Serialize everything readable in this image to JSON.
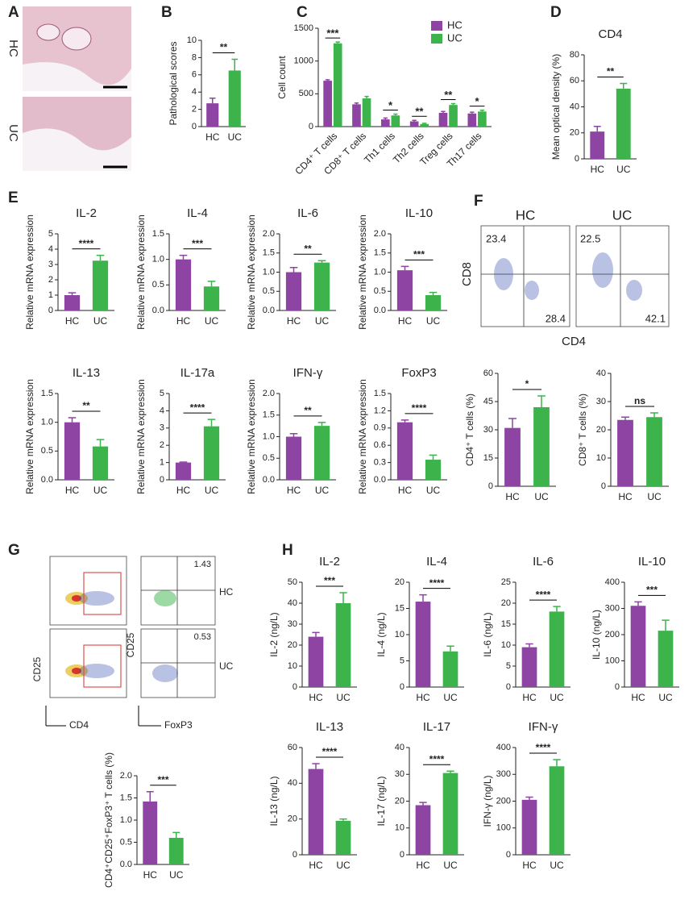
{
  "chart_data": [
    {
      "type": "bar",
      "panel": "B",
      "ylabel": "Pathological scores",
      "categories": [
        "HC",
        "UC"
      ],
      "values": [
        2.7,
        6.5
      ],
      "errors": [
        0.6,
        1.3
      ],
      "colors": [
        "#8e44a3",
        "#3cb44b"
      ],
      "ylim": [
        0,
        10
      ],
      "yticks": [
        0,
        2,
        4,
        6,
        8,
        10
      ],
      "annotation": "**"
    },
    {
      "type": "bar",
      "panel": "C",
      "ylabel": "Cell count",
      "categories": [
        "CD4⁺ T cells",
        "CD8⁺ T cells",
        "Th1 cells",
        "Th2 cells",
        "Treg cells",
        "Th17 cells"
      ],
      "series": [
        {
          "name": "HC",
          "color": "#8e44a3",
          "values": [
            700,
            340,
            110,
            80,
            210,
            200
          ],
          "errors": [
            15,
            20,
            20,
            15,
            20,
            20
          ]
        },
        {
          "name": "UC",
          "color": "#3cb44b",
          "values": [
            1270,
            430,
            170,
            40,
            330,
            230
          ],
          "errors": [
            20,
            30,
            20,
            10,
            20,
            20
          ]
        }
      ],
      "ylim": [
        0,
        1500
      ],
      "yticks": [
        0,
        500,
        1000,
        1500
      ],
      "annotations": [
        "***",
        null,
        "*",
        "**",
        "**",
        "*"
      ]
    },
    {
      "type": "bar",
      "panel": "D",
      "title": "CD4",
      "ylabel": "Mean optical density (%)",
      "categories": [
        "HC",
        "UC"
      ],
      "values": [
        21,
        54
      ],
      "errors": [
        4,
        4
      ],
      "colors": [
        "#8e44a3",
        "#3cb44b"
      ],
      "ylim": [
        0,
        80
      ],
      "yticks": [
        0,
        20,
        40,
        60,
        80
      ],
      "annotation": "**"
    },
    {
      "type": "bar",
      "panel": "E",
      "title": "IL-2",
      "ylabel": "Relative  mRNA expression",
      "categories": [
        "HC",
        "UC"
      ],
      "values": [
        1.0,
        3.25
      ],
      "errors": [
        0.15,
        0.35
      ],
      "colors": [
        "#8e44a3",
        "#3cb44b"
      ],
      "ylim": [
        0,
        5
      ],
      "yticks": [
        0,
        1,
        2,
        3,
        4,
        5
      ],
      "annotation": "****"
    },
    {
      "type": "bar",
      "title": "IL-4",
      "ylabel": "Relative  mRNA expression",
      "categories": [
        "HC",
        "UC"
      ],
      "values": [
        1.0,
        0.47
      ],
      "errors": [
        0.08,
        0.1
      ],
      "colors": [
        "#8e44a3",
        "#3cb44b"
      ],
      "ylim": [
        0,
        1.5
      ],
      "yticks": [
        {
          "value": 0,
          "label": "0.0"
        },
        0.5,
        {
          "value": 1,
          "label": "1.0"
        },
        1.5
      ],
      "annotation": "***"
    },
    {
      "type": "bar",
      "title": "IL-6",
      "ylabel": "Relative  mRNA expression",
      "categories": [
        "HC",
        "UC"
      ],
      "values": [
        1.0,
        1.25
      ],
      "errors": [
        0.12,
        0.05
      ],
      "colors": [
        "#8e44a3",
        "#3cb44b"
      ],
      "ylim": [
        0,
        2
      ],
      "yticks": [
        {
          "value": 0,
          "label": "0.0"
        },
        0.5,
        {
          "value": 1,
          "label": "1.0"
        },
        1.5,
        {
          "value": 2,
          "label": "2.0"
        }
      ],
      "annotation": "**"
    },
    {
      "type": "bar",
      "title": "IL-10",
      "ylabel": "Relative  mRNA expression",
      "categories": [
        "HC",
        "UC"
      ],
      "values": [
        1.05,
        0.4
      ],
      "errors": [
        0.1,
        0.07
      ],
      "colors": [
        "#8e44a3",
        "#3cb44b"
      ],
      "ylim": [
        0,
        2
      ],
      "yticks": [
        {
          "value": 0,
          "label": "0.0"
        },
        0.5,
        {
          "value": 1,
          "label": "1.0"
        },
        1.5,
        {
          "value": 2,
          "label": "2.0"
        }
      ],
      "annotation": "***"
    },
    {
      "type": "bar",
      "title": "IL-13",
      "ylabel": "Relative  mRNA expression",
      "categories": [
        "HC",
        "UC"
      ],
      "values": [
        1.0,
        0.58
      ],
      "errors": [
        0.08,
        0.12
      ],
      "colors": [
        "#8e44a3",
        "#3cb44b"
      ],
      "ylim": [
        0,
        1.5
      ],
      "yticks": [
        {
          "value": 0,
          "label": "0.0"
        },
        0.5,
        {
          "value": 1,
          "label": "1.0"
        },
        1.5
      ],
      "annotation": "**"
    },
    {
      "type": "bar",
      "title": "IL-17a",
      "ylabel": "Relative  mRNA expression",
      "categories": [
        "HC",
        "UC"
      ],
      "values": [
        1.0,
        3.1
      ],
      "errors": [
        0.03,
        0.4
      ],
      "colors": [
        "#8e44a3",
        "#3cb44b"
      ],
      "ylim": [
        0,
        5
      ],
      "yticks": [
        0,
        1,
        2,
        3,
        4,
        5
      ],
      "annotation": "****"
    },
    {
      "type": "bar",
      "title": "IFN-γ",
      "ylabel": "Relative  mRNA expression",
      "categories": [
        "HC",
        "UC"
      ],
      "values": [
        1.0,
        1.25
      ],
      "errors": [
        0.07,
        0.08
      ],
      "colors": [
        "#8e44a3",
        "#3cb44b"
      ],
      "ylim": [
        0,
        2
      ],
      "yticks": [
        {
          "value": 0,
          "label": "0.0"
        },
        0.5,
        {
          "value": 1,
          "label": "1.0"
        },
        1.5,
        {
          "value": 2,
          "label": "2.0"
        }
      ],
      "annotation": "**"
    },
    {
      "type": "bar",
      "title": "FoxP3",
      "ylabel": "Relative  mRNA expression",
      "categories": [
        "HC",
        "UC"
      ],
      "values": [
        1.0,
        0.35
      ],
      "errors": [
        0.04,
        0.08
      ],
      "colors": [
        "#8e44a3",
        "#3cb44b"
      ],
      "ylim": [
        0,
        1.5
      ],
      "yticks": [
        {
          "value": 0,
          "label": "0.0"
        },
        0.3,
        0.6,
        0.9,
        1.2,
        1.5
      ],
      "annotation": "****"
    },
    {
      "type": "bar",
      "ylabel": "CD4⁺ T cells (%)",
      "categories": [
        "HC",
        "UC"
      ],
      "values": [
        31,
        42
      ],
      "errors": [
        5,
        6
      ],
      "colors": [
        "#8e44a3",
        "#3cb44b"
      ],
      "ylim": [
        0,
        60
      ],
      "yticks": [
        0,
        15,
        30,
        45,
        60
      ],
      "annotation": "*"
    },
    {
      "type": "bar",
      "ylabel": "CD8⁺ T cells (%)",
      "categories": [
        "HC",
        "UC"
      ],
      "values": [
        23.5,
        24.5
      ],
      "errors": [
        1,
        1.5
      ],
      "colors": [
        "#8e44a3",
        "#3cb44b"
      ],
      "ylim": [
        0,
        40
      ],
      "yticks": [
        0,
        10,
        20,
        30,
        40
      ],
      "annotation": "ns"
    },
    {
      "type": "bar",
      "ylabel": "CD4⁺CD25⁺FoxP3⁺ T cells (%)",
      "categories": [
        "HC",
        "UC"
      ],
      "values": [
        1.42,
        0.6
      ],
      "errors": [
        0.22,
        0.12
      ],
      "colors": [
        "#8e44a3",
        "#3cb44b"
      ],
      "ylim": [
        0,
        2
      ],
      "yticks": [
        {
          "value": 0,
          "label": "0.0"
        },
        0.5,
        {
          "value": 1,
          "label": "1.0"
        },
        1.5,
        {
          "value": 2,
          "label": "2.0"
        }
      ],
      "annotation": "***"
    },
    {
      "type": "bar",
      "panel": "H",
      "title": "IL-2",
      "ylabel": "IL-2  (ng/L)",
      "categories": [
        "HC",
        "UC"
      ],
      "values": [
        24,
        40
      ],
      "errors": [
        2,
        5
      ],
      "colors": [
        "#8e44a3",
        "#3cb44b"
      ],
      "ylim": [
        0,
        50
      ],
      "yticks": [
        0,
        10,
        20,
        30,
        40,
        50
      ],
      "annotation": "***"
    },
    {
      "type": "bar",
      "title": "IL-4",
      "ylabel": "IL-4  (ng/L)",
      "categories": [
        "HC",
        "UC"
      ],
      "values": [
        16.3,
        6.8
      ],
      "errors": [
        1.3,
        1
      ],
      "colors": [
        "#8e44a3",
        "#3cb44b"
      ],
      "ylim": [
        0,
        20
      ],
      "yticks": [
        0,
        5,
        10,
        15,
        20
      ],
      "annotation": "****"
    },
    {
      "type": "bar",
      "title": "IL-6",
      "ylabel": "IL-6  (ng/L)",
      "categories": [
        "HC",
        "UC"
      ],
      "values": [
        9.5,
        18
      ],
      "errors": [
        0.8,
        1.2
      ],
      "colors": [
        "#8e44a3",
        "#3cb44b"
      ],
      "ylim": [
        0,
        25
      ],
      "yticks": [
        0,
        5,
        10,
        15,
        20,
        25
      ],
      "annotation": "****"
    },
    {
      "type": "bar",
      "title": "IL-10",
      "ylabel": "IL-10  (ng/L)",
      "categories": [
        "HC",
        "UC"
      ],
      "values": [
        310,
        215
      ],
      "errors": [
        15,
        40
      ],
      "colors": [
        "#8e44a3",
        "#3cb44b"
      ],
      "ylim": [
        0,
        400
      ],
      "yticks": [
        0,
        100,
        200,
        300,
        400
      ],
      "annotation": "***"
    },
    {
      "type": "bar",
      "title": "IL-13",
      "ylabel": "IL-13  (ng/L)",
      "categories": [
        "HC",
        "UC"
      ],
      "values": [
        48,
        19
      ],
      "errors": [
        3,
        1
      ],
      "colors": [
        "#8e44a3",
        "#3cb44b"
      ],
      "ylim": [
        0,
        60
      ],
      "yticks": [
        0,
        20,
        40,
        60
      ],
      "annotation": "****"
    },
    {
      "type": "bar",
      "title": "IL-17",
      "ylabel": "IL-17  (ng/L)",
      "categories": [
        "HC",
        "UC"
      ],
      "values": [
        18.5,
        30.5
      ],
      "errors": [
        1,
        0.7
      ],
      "colors": [
        "#8e44a3",
        "#3cb44b"
      ],
      "ylim": [
        0,
        40
      ],
      "yticks": [
        0,
        10,
        20,
        30,
        40
      ],
      "annotation": "****"
    },
    {
      "type": "bar",
      "title": "IFN-γ",
      "ylabel": "IFN-γ  (ng/L)",
      "categories": [
        "HC",
        "UC"
      ],
      "values": [
        205,
        330
      ],
      "errors": [
        10,
        25
      ],
      "colors": [
        "#8e44a3",
        "#3cb44b"
      ],
      "ylim": [
        0,
        400
      ],
      "yticks": [
        0,
        100,
        200,
        300,
        400
      ],
      "annotation": "****"
    }
  ],
  "figures": {
    "A": {
      "panel": "A",
      "groups": [
        "HC",
        "UC"
      ]
    },
    "F": {
      "panel": "F",
      "groups": [
        "HC",
        "UC"
      ],
      "quadrants": [
        [
          23.4,
          28.4
        ],
        [
          22.5,
          42.1
        ]
      ],
      "y_axis": "CD8",
      "x_axis": "CD4"
    },
    "G": {
      "panel": "G",
      "groups": [
        "HC",
        "UC"
      ],
      "gates": [
        1.43,
        0.53
      ],
      "left_axes": [
        "CD25",
        "CD4"
      ],
      "right_axes": [
        "CD25",
        "FoxP3"
      ]
    }
  }
}
